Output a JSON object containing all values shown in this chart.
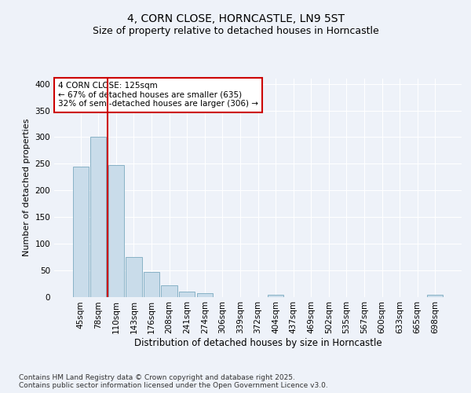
{
  "title1": "4, CORN CLOSE, HORNCASTLE, LN9 5ST",
  "title2": "Size of property relative to detached houses in Horncastle",
  "xlabel": "Distribution of detached houses by size in Horncastle",
  "ylabel": "Number of detached properties",
  "categories": [
    "45sqm",
    "78sqm",
    "110sqm",
    "143sqm",
    "176sqm",
    "208sqm",
    "241sqm",
    "274sqm",
    "306sqm",
    "339sqm",
    "372sqm",
    "404sqm",
    "437sqm",
    "469sqm",
    "502sqm",
    "535sqm",
    "567sqm",
    "600sqm",
    "633sqm",
    "665sqm",
    "698sqm"
  ],
  "values": [
    245,
    300,
    248,
    75,
    46,
    22,
    10,
    7,
    0,
    0,
    0,
    4,
    0,
    0,
    0,
    0,
    0,
    0,
    0,
    0,
    3
  ],
  "bar_color": "#c9dcea",
  "bar_edge_color": "#7baabf",
  "red_line_x": 1.5,
  "red_line_color": "#cc0000",
  "annotation_text": "4 CORN CLOSE: 125sqm\n← 67% of detached houses are smaller (635)\n32% of semi-detached houses are larger (306) →",
  "annotation_box_color": "#ffffff",
  "annotation_box_edge": "#cc0000",
  "ylim": [
    0,
    410
  ],
  "yticks": [
    0,
    50,
    100,
    150,
    200,
    250,
    300,
    350,
    400
  ],
  "background_color": "#eef2f9",
  "grid_color": "#ffffff",
  "footnote": "Contains HM Land Registry data © Crown copyright and database right 2025.\nContains public sector information licensed under the Open Government Licence v3.0.",
  "title1_fontsize": 10,
  "title2_fontsize": 9,
  "xlabel_fontsize": 8.5,
  "ylabel_fontsize": 8,
  "tick_fontsize": 7.5,
  "annot_fontsize": 7.5,
  "footnote_fontsize": 6.5
}
